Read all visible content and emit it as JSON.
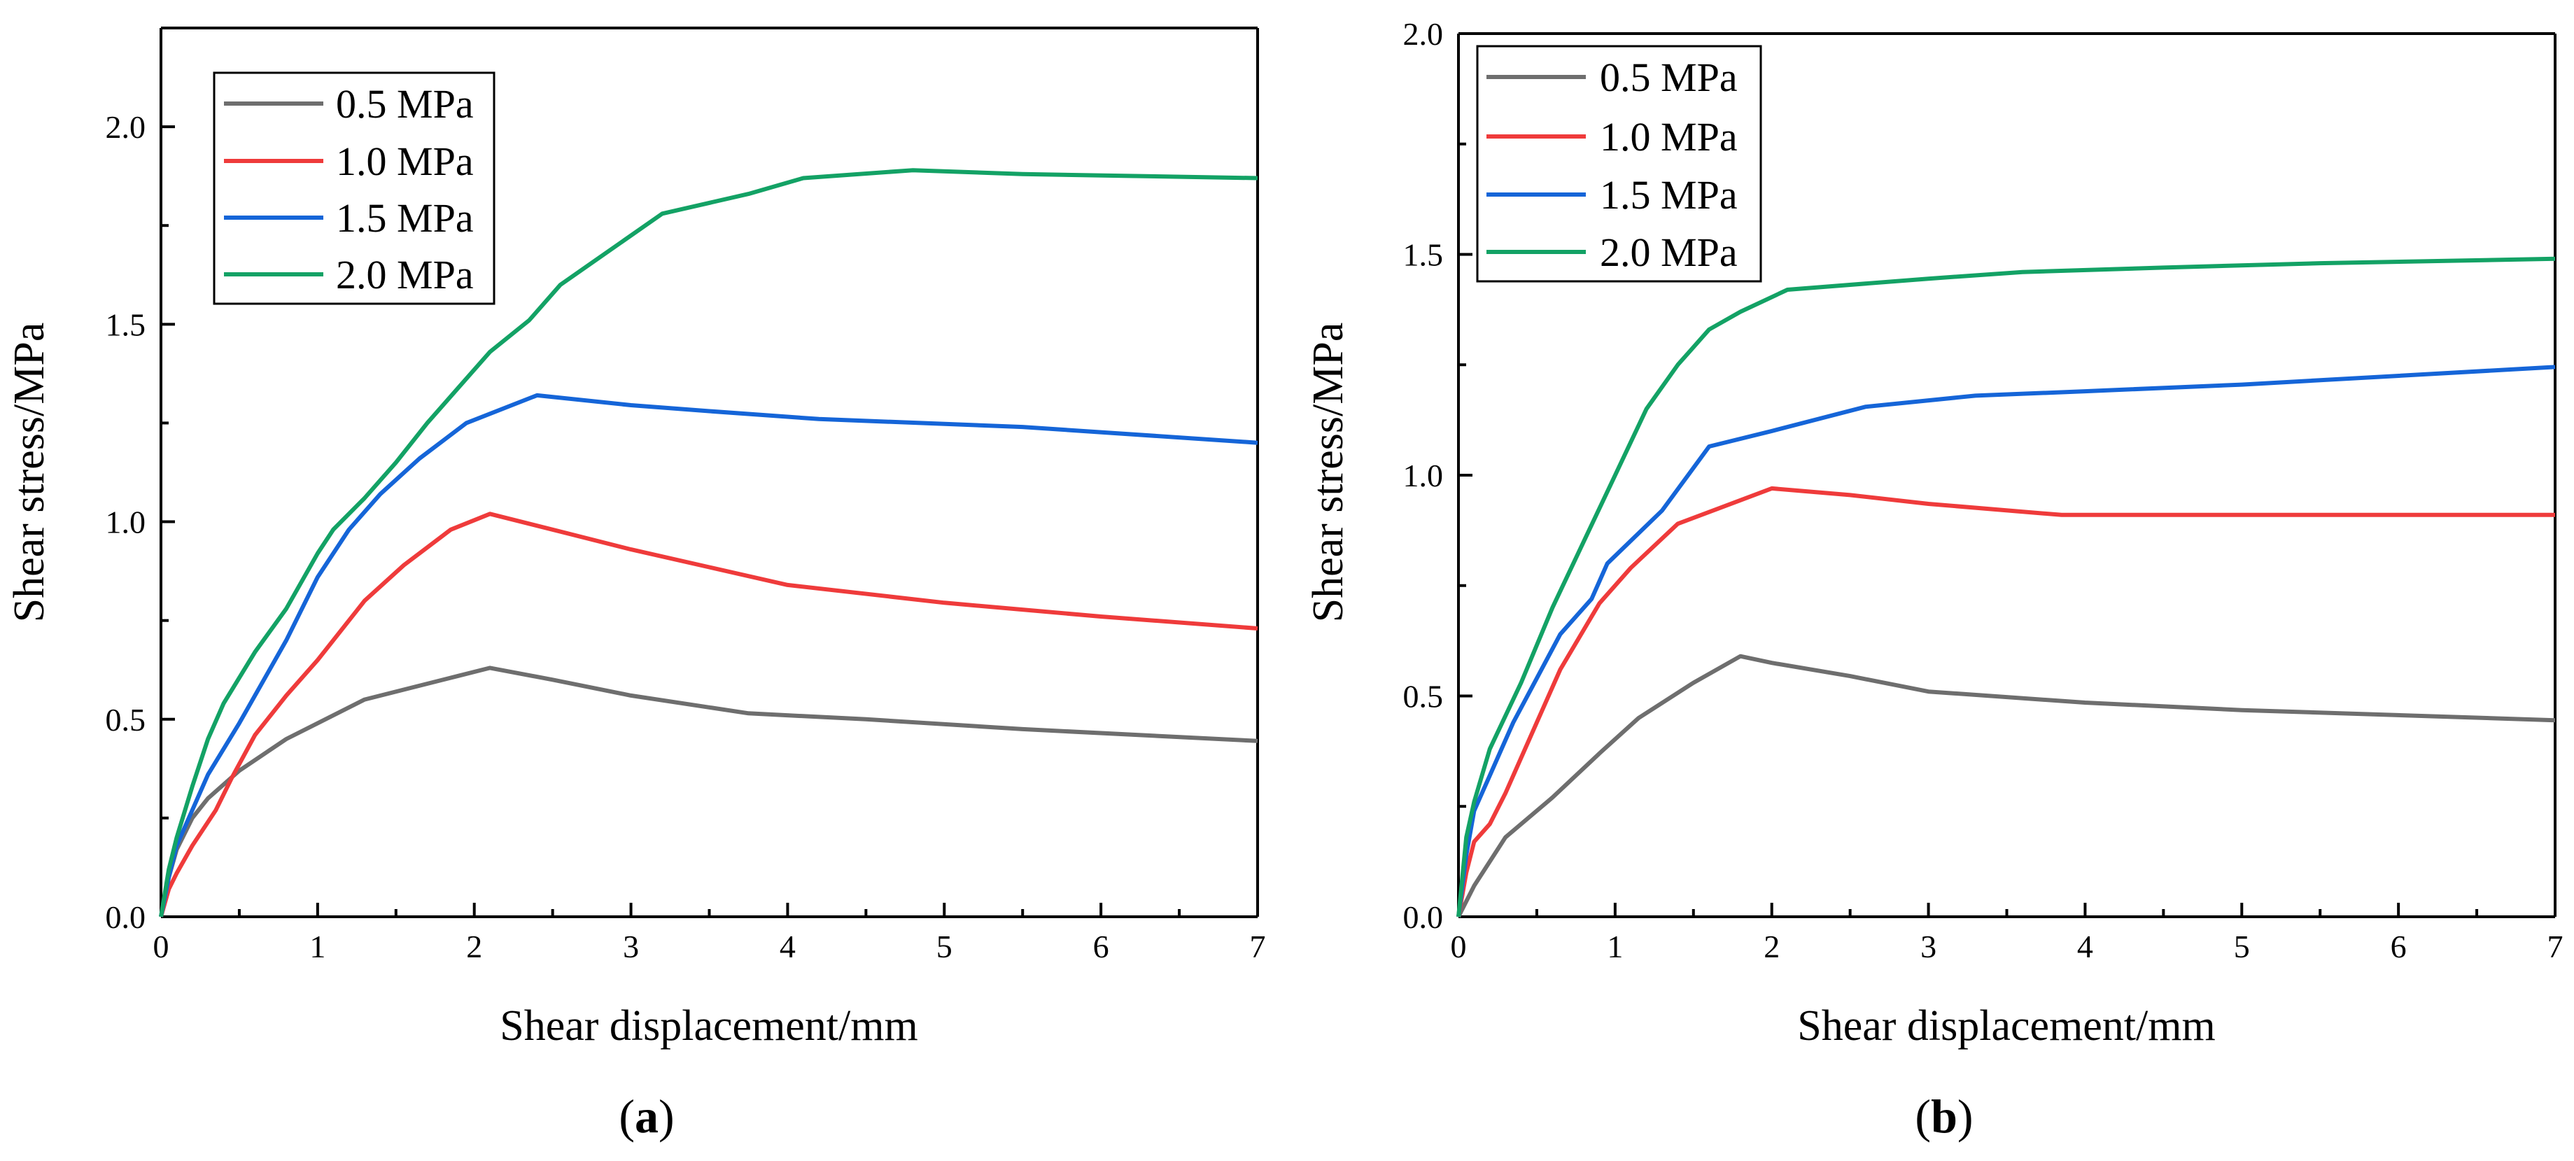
{
  "chart_data": [
    {
      "type": "line",
      "panel_label": {
        "open": "(",
        "letter": "a",
        "close": ")"
      },
      "xlabel": "Shear displacement/mm",
      "ylabel": "Shear stress/MPa",
      "xlim": [
        0,
        7
      ],
      "ylim": [
        0,
        2.25
      ],
      "xticks": [
        0,
        1,
        2,
        3,
        4,
        5,
        6,
        7
      ],
      "xtick_labels": [
        "0",
        "1",
        "2",
        "3",
        "4",
        "5",
        "6",
        "7"
      ],
      "yticks": [
        0,
        0.5,
        1.0,
        1.5,
        2.0
      ],
      "ytick_labels": [
        "0.0",
        "0.5",
        "1.0",
        "1.5",
        "2.0"
      ],
      "legend_position": "top-left",
      "grid": false,
      "series": [
        {
          "name": "0.5 MPa",
          "color": "#6e6e6e",
          "x": [
            0,
            0.05,
            0.1,
            0.2,
            0.3,
            0.5,
            0.8,
            1.0,
            1.3,
            1.6,
            1.9,
            2.1,
            2.5,
            3.0,
            3.75,
            4.5,
            5.5,
            7.0
          ],
          "y": [
            0,
            0.1,
            0.17,
            0.25,
            0.3,
            0.37,
            0.45,
            0.49,
            0.55,
            0.58,
            0.61,
            0.63,
            0.6,
            0.56,
            0.515,
            0.5,
            0.475,
            0.445
          ]
        },
        {
          "name": "1.0 MPa",
          "color": "#ef3b3b",
          "x": [
            0,
            0.05,
            0.1,
            0.2,
            0.35,
            0.45,
            0.6,
            0.8,
            1.0,
            1.3,
            1.55,
            1.85,
            2.1,
            2.5,
            3.0,
            3.5,
            4.0,
            5.0,
            6.0,
            7.0
          ],
          "y": [
            0,
            0.07,
            0.11,
            0.18,
            0.27,
            0.35,
            0.46,
            0.56,
            0.65,
            0.8,
            0.89,
            0.98,
            1.02,
            0.98,
            0.93,
            0.885,
            0.84,
            0.795,
            0.76,
            0.73
          ]
        },
        {
          "name": "1.5 MPa",
          "color": "#1565d8",
          "x": [
            0,
            0.05,
            0.1,
            0.2,
            0.3,
            0.5,
            0.8,
            1.0,
            1.2,
            1.4,
            1.65,
            1.95,
            2.4,
            3.0,
            3.5,
            4.2,
            5.5,
            7.0
          ],
          "y": [
            0,
            0.1,
            0.18,
            0.27,
            0.36,
            0.49,
            0.7,
            0.86,
            0.98,
            1.07,
            1.16,
            1.25,
            1.32,
            1.295,
            1.28,
            1.26,
            1.24,
            1.2
          ]
        },
        {
          "name": "2.0 MPa",
          "color": "#13a265",
          "x": [
            0,
            0.05,
            0.1,
            0.2,
            0.3,
            0.4,
            0.6,
            0.8,
            1.0,
            1.1,
            1.3,
            1.5,
            1.7,
            1.9,
            2.1,
            2.35,
            2.55,
            3.2,
            3.75,
            4.1,
            4.8,
            5.5,
            7.0
          ],
          "y": [
            0,
            0.12,
            0.2,
            0.33,
            0.45,
            0.54,
            0.67,
            0.78,
            0.92,
            0.98,
            1.06,
            1.15,
            1.25,
            1.34,
            1.43,
            1.51,
            1.6,
            1.78,
            1.83,
            1.87,
            1.89,
            1.88,
            1.87
          ]
        }
      ]
    },
    {
      "type": "line",
      "panel_label": {
        "open": "(",
        "letter": "b",
        "close": ")"
      },
      "xlabel": "Shear displacement/mm",
      "ylabel": "Shear stress/MPa",
      "xlim": [
        0,
        7
      ],
      "ylim": [
        0,
        2.0
      ],
      "xticks": [
        0,
        1,
        2,
        3,
        4,
        5,
        6,
        7
      ],
      "xtick_labels": [
        "0",
        "1",
        "2",
        "3",
        "4",
        "5",
        "6",
        "7"
      ],
      "yticks": [
        0,
        0.5,
        1.0,
        1.5,
        2.0
      ],
      "ytick_labels": [
        "0.0",
        "0.5",
        "1.0",
        "1.5",
        "2.0"
      ],
      "legend_position": "top-left",
      "grid": false,
      "series": [
        {
          "name": "0.5 MPa",
          "color": "#6e6e6e",
          "x": [
            0,
            0.1,
            0.3,
            0.6,
            0.9,
            1.15,
            1.5,
            1.8,
            2.0,
            2.5,
            3.0,
            4.0,
            5.0,
            7.0
          ],
          "y": [
            0,
            0.07,
            0.18,
            0.27,
            0.37,
            0.45,
            0.53,
            0.59,
            0.575,
            0.545,
            0.51,
            0.485,
            0.468,
            0.445
          ]
        },
        {
          "name": "1.0 MPa",
          "color": "#ef3b3b",
          "x": [
            0,
            0.05,
            0.1,
            0.2,
            0.3,
            0.5,
            0.65,
            0.9,
            1.1,
            1.4,
            1.7,
            2.0,
            2.5,
            3.0,
            3.85,
            4.5,
            7.0
          ],
          "y": [
            0,
            0.1,
            0.17,
            0.21,
            0.28,
            0.44,
            0.56,
            0.71,
            0.79,
            0.89,
            0.93,
            0.97,
            0.955,
            0.935,
            0.91,
            0.91,
            0.91
          ]
        },
        {
          "name": "1.5 MPa",
          "color": "#1565d8",
          "x": [
            0,
            0.05,
            0.1,
            0.2,
            0.35,
            0.5,
            0.65,
            0.85,
            0.95,
            1.3,
            1.6,
            2.0,
            2.6,
            3.3,
            4.0,
            5.0,
            7.0
          ],
          "y": [
            0,
            0.14,
            0.24,
            0.32,
            0.44,
            0.54,
            0.64,
            0.72,
            0.8,
            0.92,
            1.065,
            1.1,
            1.155,
            1.18,
            1.19,
            1.205,
            1.245
          ]
        },
        {
          "name": "2.0 MPa",
          "color": "#13a265",
          "x": [
            0,
            0.05,
            0.1,
            0.2,
            0.4,
            0.6,
            0.8,
            1.0,
            1.2,
            1.4,
            1.6,
            1.8,
            2.1,
            3.0,
            3.6,
            4.5,
            5.5,
            7.0
          ],
          "y": [
            0,
            0.18,
            0.26,
            0.38,
            0.53,
            0.7,
            0.85,
            1.0,
            1.15,
            1.25,
            1.33,
            1.37,
            1.42,
            1.445,
            1.46,
            1.47,
            1.48,
            1.49
          ]
        }
      ]
    }
  ]
}
